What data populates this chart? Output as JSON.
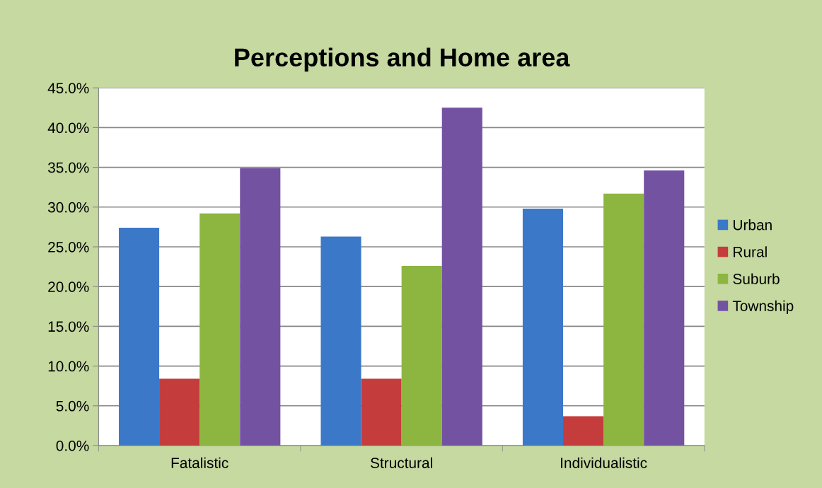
{
  "chart_data": {
    "type": "bar",
    "title": "Perceptions and Home area",
    "categories": [
      "Fatalistic",
      "Structural",
      "Individualistic"
    ],
    "series": [
      {
        "name": "Urban",
        "color": "#3c78c8",
        "values": [
          27.4,
          26.3,
          29.8
        ]
      },
      {
        "name": "Rural",
        "color": "#c43c3c",
        "values": [
          8.4,
          8.4,
          3.7
        ]
      },
      {
        "name": "Suburb",
        "color": "#8db640",
        "values": [
          29.2,
          22.6,
          31.7
        ]
      },
      {
        "name": "Township",
        "color": "#7352a2",
        "values": [
          34.9,
          42.5,
          34.6
        ]
      }
    ],
    "ylim": [
      0,
      45
    ],
    "yticks": [
      {
        "value": 0,
        "label": "0.0%"
      },
      {
        "value": 5,
        "label": "5.0%"
      },
      {
        "value": 10,
        "label": "10.0%"
      },
      {
        "value": 15,
        "label": "15.0%"
      },
      {
        "value": 20,
        "label": "20.0%"
      },
      {
        "value": 25,
        "label": "25.0%"
      },
      {
        "value": 30,
        "label": "30.0%"
      },
      {
        "value": 35,
        "label": "35.0%"
      },
      {
        "value": 40,
        "label": "40.0%"
      },
      {
        "value": 45,
        "label": "45.0%"
      }
    ],
    "grid": "y",
    "legend": "right"
  }
}
